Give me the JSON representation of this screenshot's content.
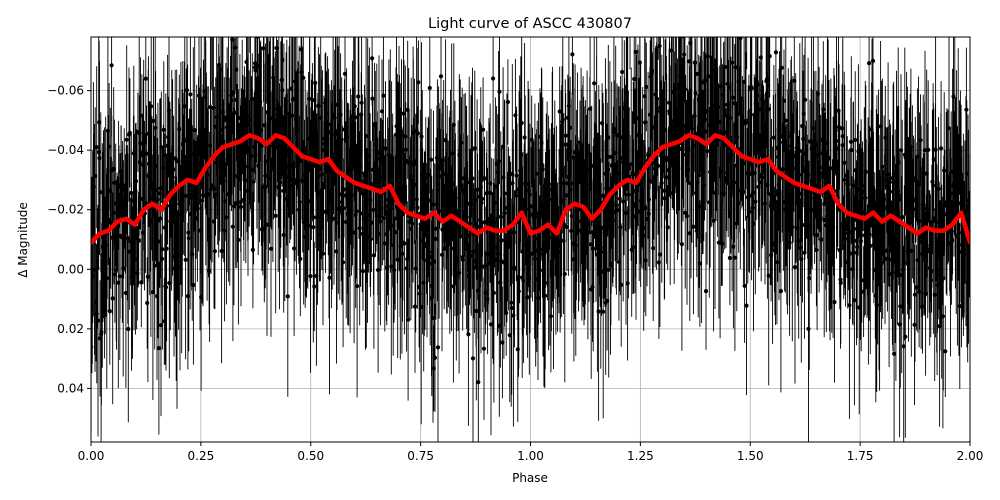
{
  "chart_data": {
    "type": "scatter",
    "title": "Light curve of ASCC 430807",
    "xlabel": "Phase",
    "ylabel": "Δ Magnitude",
    "xlim": [
      0.0,
      2.0
    ],
    "ylim": [
      0.058,
      -0.078
    ],
    "y_inverted": true,
    "grid": true,
    "x_ticks": [
      0.0,
      0.25,
      0.5,
      0.75,
      1.0,
      1.25,
      1.5,
      1.75,
      2.0
    ],
    "x_tick_labels": [
      "0.00",
      "0.25",
      "0.50",
      "0.75",
      "1.00",
      "1.25",
      "1.50",
      "1.75",
      "2.00"
    ],
    "y_ticks": [
      -0.06,
      -0.04,
      -0.02,
      0.0,
      0.02,
      0.04
    ],
    "y_tick_labels": [
      "−0.06",
      "−0.04",
      "−0.02",
      "0.00",
      "0.02",
      "0.04"
    ],
    "series": [
      {
        "kind": "scatter-errorbar",
        "color": "#000000",
        "description_points": "dense noisy measurements with error bars, scatter about ±0.05 mag around the binned curve",
        "scatter_amplitude": 0.032,
        "typical_error": 0.022
      },
      {
        "kind": "binned-line",
        "color": "#ff0000",
        "x": [
          0.0,
          0.02,
          0.04,
          0.06,
          0.08,
          0.1,
          0.12,
          0.14,
          0.16,
          0.18,
          0.2,
          0.22,
          0.24,
          0.26,
          0.28,
          0.3,
          0.32,
          0.34,
          0.36,
          0.38,
          0.4,
          0.42,
          0.44,
          0.46,
          0.48,
          0.5,
          0.52,
          0.54,
          0.56,
          0.58,
          0.6,
          0.62,
          0.64,
          0.66,
          0.68,
          0.7,
          0.72,
          0.74,
          0.76,
          0.78,
          0.8,
          0.82,
          0.84,
          0.86,
          0.88,
          0.9,
          0.92,
          0.94,
          0.96,
          0.98,
          1.0,
          1.02,
          1.04,
          1.06,
          1.08,
          1.1,
          1.12,
          1.14,
          1.16,
          1.18,
          1.2,
          1.22,
          1.24,
          1.26,
          1.28,
          1.3,
          1.32,
          1.34,
          1.36,
          1.38,
          1.4,
          1.42,
          1.44,
          1.46,
          1.48,
          1.5,
          1.52,
          1.54,
          1.56,
          1.58,
          1.6,
          1.62,
          1.64,
          1.66,
          1.68,
          1.7,
          1.72,
          1.74,
          1.76,
          1.78,
          1.8,
          1.82,
          1.84,
          1.86,
          1.88,
          1.9,
          1.92,
          1.94,
          1.96,
          1.98,
          2.0
        ],
        "y": [
          -0.009,
          -0.012,
          -0.013,
          -0.016,
          -0.017,
          -0.015,
          -0.02,
          -0.022,
          -0.02,
          -0.025,
          -0.028,
          -0.03,
          -0.029,
          -0.034,
          -0.038,
          -0.041,
          -0.042,
          -0.043,
          -0.045,
          -0.044,
          -0.042,
          -0.045,
          -0.044,
          -0.041,
          -0.038,
          -0.037,
          -0.036,
          -0.037,
          -0.033,
          -0.031,
          -0.029,
          -0.028,
          -0.027,
          -0.026,
          -0.028,
          -0.022,
          -0.019,
          -0.018,
          -0.017,
          -0.019,
          -0.016,
          -0.018,
          -0.016,
          -0.014,
          -0.012,
          -0.014,
          -0.013,
          -0.013,
          -0.015,
          -0.019,
          -0.012,
          -0.013,
          -0.015,
          -0.012,
          -0.02,
          -0.022,
          -0.021,
          -0.017,
          -0.02,
          -0.025,
          -0.028,
          -0.03,
          -0.029,
          -0.034,
          -0.038,
          -0.041,
          -0.042,
          -0.043,
          -0.045,
          -0.044,
          -0.042,
          -0.045,
          -0.044,
          -0.041,
          -0.038,
          -0.037,
          -0.036,
          -0.037,
          -0.033,
          -0.031,
          -0.029,
          -0.028,
          -0.027,
          -0.026,
          -0.028,
          -0.022,
          -0.019,
          -0.018,
          -0.017,
          -0.019,
          -0.016,
          -0.018,
          -0.016,
          -0.014,
          -0.012,
          -0.014,
          -0.013,
          -0.013,
          -0.015,
          -0.019,
          -0.009
        ]
      }
    ]
  }
}
